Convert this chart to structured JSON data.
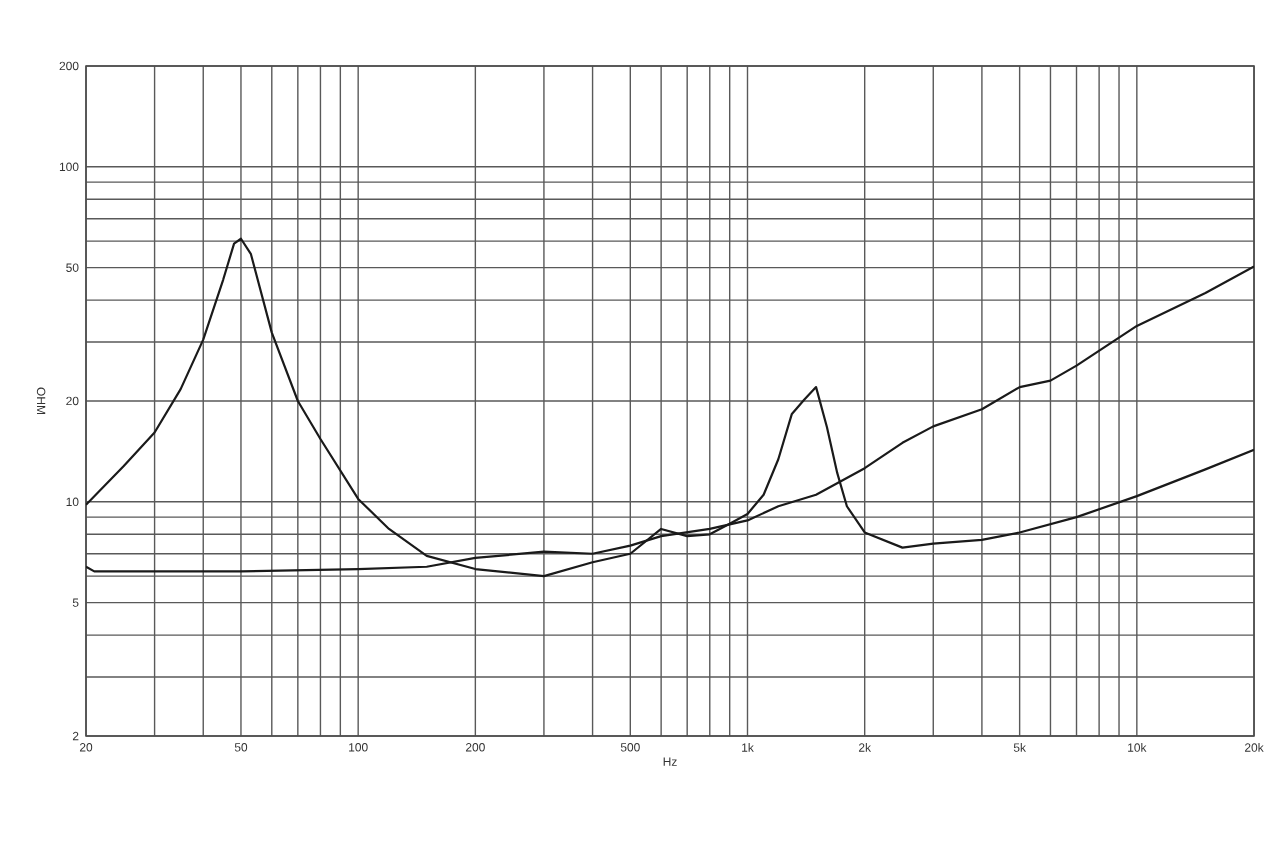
{
  "chart_data": {
    "type": "line",
    "xlabel": "Hz",
    "ylabel": "OHM",
    "log": "xy",
    "grid": true,
    "marker": "none",
    "line_style": "solid",
    "xlim": [
      20,
      20000
    ],
    "ylim": [
      2,
      200
    ],
    "xticks": [
      20,
      {
        "value": 30,
        "label": null
      },
      {
        "value": 40,
        "label": null
      },
      50,
      {
        "value": 60,
        "label": null
      },
      {
        "value": 70,
        "label": null
      },
      {
        "value": 80,
        "label": null
      },
      {
        "value": 90,
        "label": null
      },
      100,
      200,
      {
        "value": 300,
        "label": null
      },
      {
        "value": 400,
        "label": null
      },
      500,
      {
        "value": 600,
        "label": null
      },
      {
        "value": 700,
        "label": null
      },
      {
        "value": 800,
        "label": null
      },
      {
        "value": 900,
        "label": null
      },
      {
        "value": 1000,
        "label": "1k"
      },
      {
        "value": 2000,
        "label": "2k"
      },
      {
        "value": 3000,
        "label": null
      },
      {
        "value": 4000,
        "label": null
      },
      {
        "value": 5000,
        "label": "5k"
      },
      {
        "value": 6000,
        "label": null
      },
      {
        "value": 7000,
        "label": null
      },
      {
        "value": 8000,
        "label": null
      },
      {
        "value": 9000,
        "label": null
      },
      {
        "value": 10000,
        "label": "10k"
      },
      {
        "value": 20000,
        "label": "20k"
      }
    ],
    "yticks": [
      2,
      {
        "value": 3,
        "label": null
      },
      {
        "value": 4,
        "label": null
      },
      5,
      {
        "value": 6,
        "label": null
      },
      {
        "value": 7,
        "label": null
      },
      {
        "value": 8,
        "label": null
      },
      {
        "value": 9,
        "label": null
      },
      10,
      20,
      {
        "value": 30,
        "label": null
      },
      {
        "value": 40,
        "label": null
      },
      50,
      {
        "value": 60,
        "label": null
      },
      {
        "value": 70,
        "label": null
      },
      {
        "value": 80,
        "label": null
      },
      {
        "value": 90,
        "label": null
      },
      100,
      200
    ],
    "series": [
      {
        "color": "#1a1a1a",
        "x": [
          20,
          25,
          30,
          35,
          40,
          45,
          48,
          50,
          53,
          60,
          70,
          80,
          100,
          120,
          150,
          200,
          300,
          400,
          500,
          600,
          700,
          800,
          900,
          1000,
          1100,
          1200,
          1300,
          1400,
          1500,
          1600,
          1700,
          1800,
          2000,
          2500,
          3000,
          4000,
          5000,
          7000,
          10000,
          15000,
          20000
        ],
        "values": [
          9.8,
          12.8,
          16.1,
          21.7,
          30.5,
          46,
          59,
          61,
          55,
          32,
          20,
          15.4,
          10.2,
          8.3,
          6.9,
          6.3,
          6.0,
          6.6,
          7.0,
          8.3,
          7.9,
          8.0,
          8.6,
          9.2,
          10.5,
          13.4,
          18.3,
          20.2,
          22,
          16.7,
          12.2,
          9.7,
          8.1,
          7.3,
          7.5,
          7.7,
          8.1,
          9.0,
          10.4,
          12.5,
          14.3
        ]
      },
      {
        "color": "#1a1a1a",
        "x": [
          20,
          21,
          50,
          100,
          150,
          200,
          300,
          400,
          500,
          600,
          800,
          1000,
          1200,
          1500,
          2000,
          2500,
          3000,
          4000,
          5000,
          6000,
          7000,
          10000,
          15000,
          20000
        ],
        "values": [
          6.4,
          6.2,
          6.2,
          6.3,
          6.4,
          6.8,
          7.1,
          7.0,
          7.4,
          7.9,
          8.3,
          8.8,
          9.7,
          10.5,
          12.6,
          15,
          16.8,
          18.9,
          22,
          23,
          25.5,
          33.5,
          42,
          50.4
        ]
      }
    ]
  }
}
